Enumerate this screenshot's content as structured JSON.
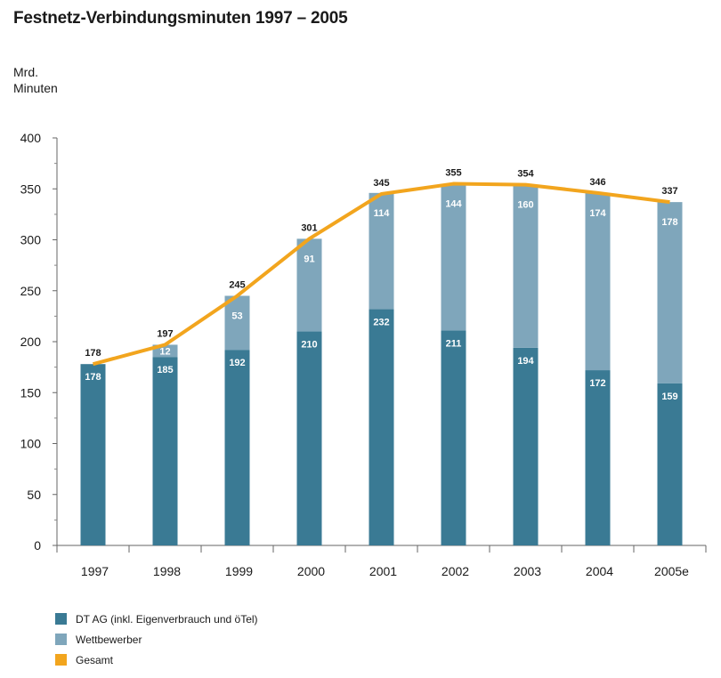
{
  "chart_data": {
    "type": "bar",
    "title": "Festnetz-Verbindungsminuten 1997 – 2005",
    "ylabel_line1": "Mrd.",
    "ylabel_line2": "Minuten",
    "xlabel": "",
    "ylim": [
      0,
      400
    ],
    "yticks": [
      "0",
      "50",
      "100",
      "150",
      "200",
      "250",
      "300",
      "350",
      "400"
    ],
    "categories": [
      "1997",
      "1998",
      "1999",
      "2000",
      "2001",
      "2002",
      "2003",
      "2004",
      "2005e"
    ],
    "stacked": true,
    "grid": false,
    "legend_position": "bottom-left",
    "series": [
      {
        "name": "DT AG (inkl. Eigenverbrauch und öTel)",
        "type": "bar",
        "color": "#3a7a94",
        "values": [
          178,
          185,
          192,
          210,
          232,
          211,
          194,
          172,
          159
        ],
        "labels": [
          "178",
          "185",
          "192",
          "210",
          "232",
          "211",
          "194",
          "172",
          "159"
        ]
      },
      {
        "name": "Wettbewerber",
        "type": "bar",
        "color": "#7fa6bb",
        "values": [
          0,
          12,
          53,
          91,
          114,
          144,
          160,
          174,
          178
        ],
        "labels": [
          "",
          "12",
          "53",
          "91",
          "114",
          "144",
          "160",
          "174",
          "178"
        ]
      },
      {
        "name": "Gesamt",
        "type": "line",
        "color": "#f2a51e",
        "values": [
          178,
          197,
          245,
          301,
          345,
          355,
          354,
          346,
          337
        ],
        "labels": [
          "178",
          "197",
          "245",
          "301",
          "345",
          "355",
          "354",
          "346",
          "337"
        ]
      }
    ]
  }
}
